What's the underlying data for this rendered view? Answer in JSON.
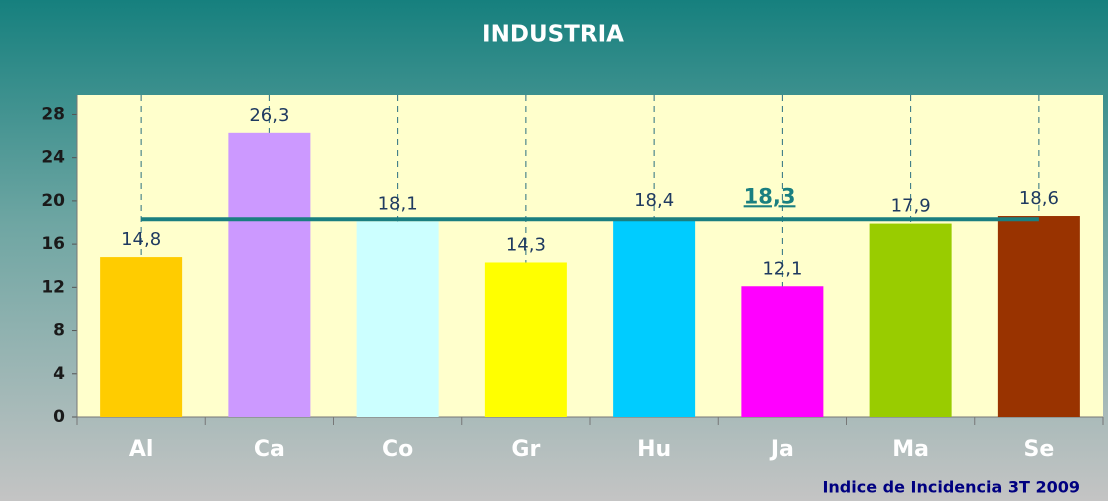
{
  "chart_data": {
    "type": "bar",
    "title": "INDUSTRIA",
    "categories": [
      "Al",
      "Ca",
      "Co",
      "Gr",
      "Hu",
      "Ja",
      "Ma",
      "Se"
    ],
    "values": [
      14.8,
      26.3,
      18.1,
      14.3,
      18.4,
      12.1,
      17.9,
      18.6
    ],
    "value_labels": [
      "14,8",
      "26,3",
      "18,1",
      "14,3",
      "18,4",
      "12,1",
      "17,9",
      "18,6"
    ],
    "colors": [
      "#ffcc00",
      "#cc99ff",
      "#ccffff",
      "#ffff00",
      "#00ccff",
      "#ff00ff",
      "#99cc00",
      "#993300"
    ],
    "average": {
      "value": 18.3,
      "label": "18,3"
    },
    "average_color": "#1a7f80",
    "ylim": [
      0,
      29.8
    ],
    "yticks": [
      0,
      4,
      8,
      12,
      16,
      20,
      24,
      28
    ],
    "grid": true,
    "note": "Indice de Incidencia 3T 2009"
  }
}
